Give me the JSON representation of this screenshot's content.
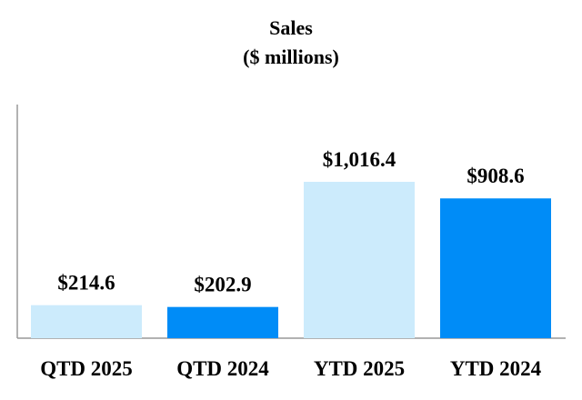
{
  "chart_data": {
    "type": "bar",
    "title": "Sales",
    "subtitle": "($ millions)",
    "categories": [
      "QTD 2025",
      "QTD 2024",
      "YTD 2025",
      "YTD 2024"
    ],
    "values": [
      214.6,
      202.9,
      1016.4,
      908.6
    ],
    "data_labels": [
      "$214.6",
      "$202.9",
      "$1,016.4",
      "$908.6"
    ],
    "colors": [
      "#CCEBFC",
      "#008CF7",
      "#CCEBFC",
      "#008CF7"
    ],
    "xlabel": "",
    "ylabel": "",
    "ylim": [
      0,
      1500
    ],
    "grid": false,
    "legend": "none"
  }
}
